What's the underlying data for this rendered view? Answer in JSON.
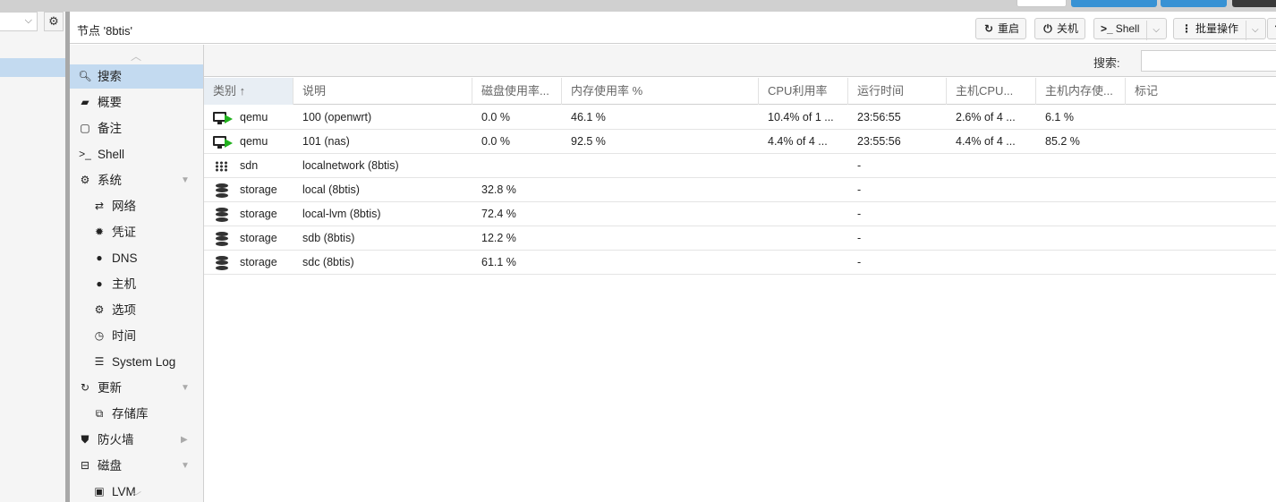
{
  "panel": {
    "title": "节点 '8btis'"
  },
  "toolbar": {
    "restart_label": "重启",
    "shutdown_label": "关机",
    "shell_label": "Shell",
    "bulk_label": "批量操作"
  },
  "nav": {
    "items": [
      {
        "label": "搜索",
        "icon": "search-icon"
      },
      {
        "label": "概要",
        "icon": "book-icon"
      },
      {
        "label": "备注",
        "icon": "note-icon"
      },
      {
        "label": "Shell",
        "icon": "terminal-icon"
      },
      {
        "label": "系统",
        "icon": "cogs-icon"
      },
      {
        "label": "网络",
        "icon": "exchange-icon"
      },
      {
        "label": "凭证",
        "icon": "certificate-icon"
      },
      {
        "label": "DNS",
        "icon": "globe-icon"
      },
      {
        "label": "主机",
        "icon": "globe-icon"
      },
      {
        "label": "选项",
        "icon": "gear-icon"
      },
      {
        "label": "时间",
        "icon": "clock-icon"
      },
      {
        "label": "System Log",
        "icon": "list-icon"
      },
      {
        "label": "更新",
        "icon": "refresh-icon"
      },
      {
        "label": "存储库",
        "icon": "files-icon"
      },
      {
        "label": "防火墙",
        "icon": "shield-icon"
      },
      {
        "label": "磁盘",
        "icon": "hdd-icon"
      },
      {
        "label": "LVM",
        "icon": "cube-icon"
      }
    ]
  },
  "search": {
    "label": "搜索:",
    "value": ""
  },
  "grid": {
    "columns": [
      "类别 ↑",
      "说明",
      "磁盘使用率...",
      "内存使用率 %",
      "CPU利用率",
      "运行时间",
      "主机CPU...",
      "主机内存使...",
      "标记"
    ],
    "rows": [
      {
        "type": "qemu",
        "icon": "vm-running-icon",
        "desc": "100 (openwrt)",
        "disk": "0.0 %",
        "mem": "46.1 %",
        "cpu": "10.4% of 1 ...",
        "uptime": "23:56:55",
        "hostcpu": "2.6% of 4 ...",
        "hostmem": "6.1 %"
      },
      {
        "type": "qemu",
        "icon": "vm-running-icon",
        "desc": "101 (nas)",
        "disk": "0.0 %",
        "mem": "92.5 %",
        "cpu": "4.4% of 4 ...",
        "uptime": "23:55:56",
        "hostcpu": "4.4% of 4 ...",
        "hostmem": "85.2 %"
      },
      {
        "type": "sdn",
        "icon": "grid-icon",
        "desc": "localnetwork (8btis)",
        "disk": "",
        "mem": "",
        "cpu": "",
        "uptime": "-",
        "hostcpu": "",
        "hostmem": ""
      },
      {
        "type": "storage",
        "icon": "database-icon",
        "desc": "local (8btis)",
        "disk": "32.8 %",
        "mem": "",
        "cpu": "",
        "uptime": "-",
        "hostcpu": "",
        "hostmem": ""
      },
      {
        "type": "storage",
        "icon": "database-icon",
        "desc": "local-lvm (8btis)",
        "disk": "72.4 %",
        "mem": "",
        "cpu": "",
        "uptime": "-",
        "hostcpu": "",
        "hostmem": ""
      },
      {
        "type": "storage",
        "icon": "database-icon",
        "desc": "sdb (8btis)",
        "disk": "12.2 %",
        "mem": "",
        "cpu": "",
        "uptime": "-",
        "hostcpu": "",
        "hostmem": ""
      },
      {
        "type": "storage",
        "icon": "database-icon",
        "desc": "sdc (8btis)",
        "disk": "61.1 %",
        "mem": "",
        "cpu": "",
        "uptime": "-",
        "hostcpu": "",
        "hostmem": ""
      }
    ]
  },
  "colors": {
    "selection": "#c3daf0",
    "running": "#21b11e",
    "accent": "#3892d4"
  }
}
